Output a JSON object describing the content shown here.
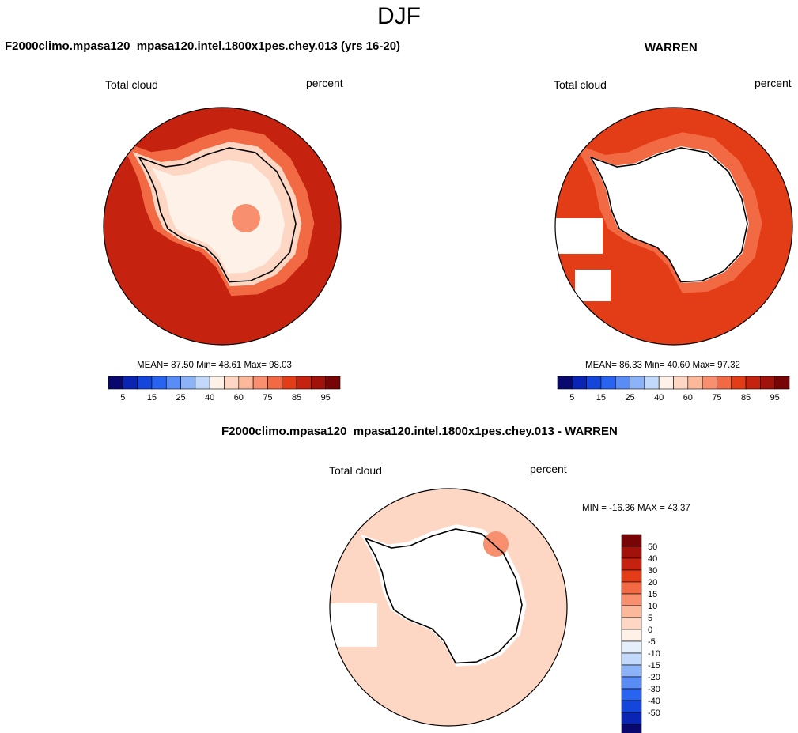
{
  "page": {
    "title": "DJF"
  },
  "panels": [
    {
      "title": "F2000climo.mpasa120_mpasa120.intel.1800x1pes.chey.013 (yrs 16-20)",
      "left_label": "Total cloud",
      "right_label": "percent",
      "stats": "MEAN=  87.50  Min=  48.61  Max=  98.03"
    },
    {
      "title": "WARREN",
      "left_label": "Total cloud",
      "right_label": "percent",
      "stats": "MEAN=  86.33  Min=  40.60  Max=  97.32"
    },
    {
      "title": "F2000climo.mpasa120_mpasa120.intel.1800x1pes.chey.013 - WARREN",
      "left_label": "Total cloud",
      "right_label": "percent",
      "stats": "MIN = -16.36 MAX =  43.37"
    }
  ],
  "colors": {
    "seq": [
      "#08086e",
      "#0a24b4",
      "#1446dc",
      "#2864f0",
      "#5a8cf5",
      "#8cb2f8",
      "#c3d9fb",
      "#fdf1e8",
      "#fdd7c4",
      "#fbb89a",
      "#f88f6e",
      "#f26a44",
      "#e33d18",
      "#c52210",
      "#a0120a",
      "#780505"
    ],
    "div": [
      "#780505",
      "#a0120a",
      "#c52210",
      "#e33d18",
      "#f26a44",
      "#f88f6e",
      "#fbb89a",
      "#fdd7c4",
      "#fdf1e8",
      "#e5effc",
      "#c3d9fb",
      "#8cb2f8",
      "#5a8cf5",
      "#2864f0",
      "#1446dc",
      "#0a24b4",
      "#08086e"
    ]
  },
  "chart_data": [
    {
      "type": "heatmap",
      "projection": "south-polar-stereographic",
      "title": "F2000climo.mpasa120_mpasa120.intel.1800x1pes.chey.013 (yrs 16-20)",
      "variable": "Total cloud",
      "units": "percent",
      "mean": 87.5,
      "min": 48.61,
      "max": 98.03,
      "colorbar_levels": [
        5,
        10,
        15,
        20,
        25,
        30,
        40,
        50,
        60,
        65,
        75,
        80,
        85,
        90,
        95
      ],
      "colorbar_tick_labels": [
        "5",
        "15",
        "25",
        "40",
        "60",
        "75",
        "85",
        "95"
      ]
    },
    {
      "type": "heatmap",
      "projection": "south-polar-stereographic",
      "title": "WARREN",
      "variable": "Total cloud",
      "units": "percent",
      "mean": 86.33,
      "min": 40.6,
      "max": 97.32,
      "colorbar_levels": [
        5,
        10,
        15,
        20,
        25,
        30,
        40,
        50,
        60,
        65,
        75,
        80,
        85,
        90,
        95
      ],
      "colorbar_tick_labels": [
        "5",
        "15",
        "25",
        "40",
        "60",
        "75",
        "85",
        "95"
      ]
    },
    {
      "type": "heatmap",
      "projection": "south-polar-stereographic",
      "title": "F2000climo.mpasa120_mpasa120.intel.1800x1pes.chey.013 - WARREN",
      "variable": "Total cloud",
      "units": "percent",
      "min": -16.36,
      "max": 43.37,
      "colorbar_tick_labels": [
        "50",
        "40",
        "30",
        "20",
        "15",
        "10",
        "5",
        "0",
        "-5",
        "-10",
        "-15",
        "-20",
        "-30",
        "-40",
        "-50"
      ]
    }
  ]
}
